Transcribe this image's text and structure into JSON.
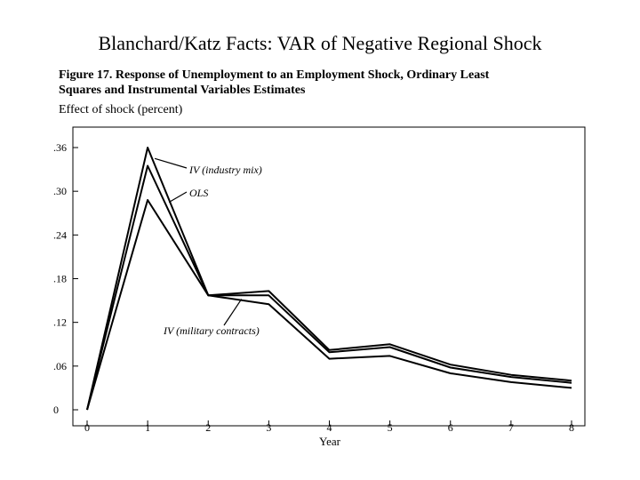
{
  "slide": {
    "title": "Blanchard/Katz Facts: VAR of  Negative Regional Shock"
  },
  "figure": {
    "caption_line1": "Figure 17.  Response of Unemployment to an Employment Shock, Ordinary Least",
    "caption_line2": "Squares and Instrumental Variables Estimates"
  },
  "chart_data": {
    "type": "line",
    "title": "",
    "xlabel": "Year",
    "ylabel": "Effect of shock (percent)",
    "x": [
      0,
      1,
      2,
      3,
      4,
      5,
      6,
      7,
      8
    ],
    "x_ticks": [
      "0",
      "1",
      "2",
      "3",
      "4",
      "5",
      "6",
      "7",
      "8"
    ],
    "y_ticks": [
      {
        "value": 0,
        "label": "0"
      },
      {
        "value": 0.06,
        "label": ".06"
      },
      {
        "value": 0.12,
        "label": ".12"
      },
      {
        "value": 0.18,
        "label": ".18"
      },
      {
        "value": 0.24,
        "label": ".24"
      },
      {
        "value": 0.3,
        "label": ".30"
      },
      {
        "value": 0.36,
        "label": ".36"
      }
    ],
    "xlim": [
      0,
      8
    ],
    "ylim": [
      0,
      0.36
    ],
    "grid": false,
    "series": [
      {
        "name": "IV (industry mix)",
        "values": [
          0,
          0.36,
          0.157,
          0.163,
          0.082,
          0.09,
          0.062,
          0.048,
          0.04
        ]
      },
      {
        "name": "OLS",
        "values": [
          0,
          0.335,
          0.157,
          0.157,
          0.079,
          0.086,
          0.058,
          0.045,
          0.037
        ]
      },
      {
        "name": "IV (military contracts)",
        "values": [
          0,
          0.288,
          0.157,
          0.145,
          0.07,
          0.074,
          0.05,
          0.038,
          0.03
        ]
      }
    ],
    "series_color": "#000000"
  }
}
